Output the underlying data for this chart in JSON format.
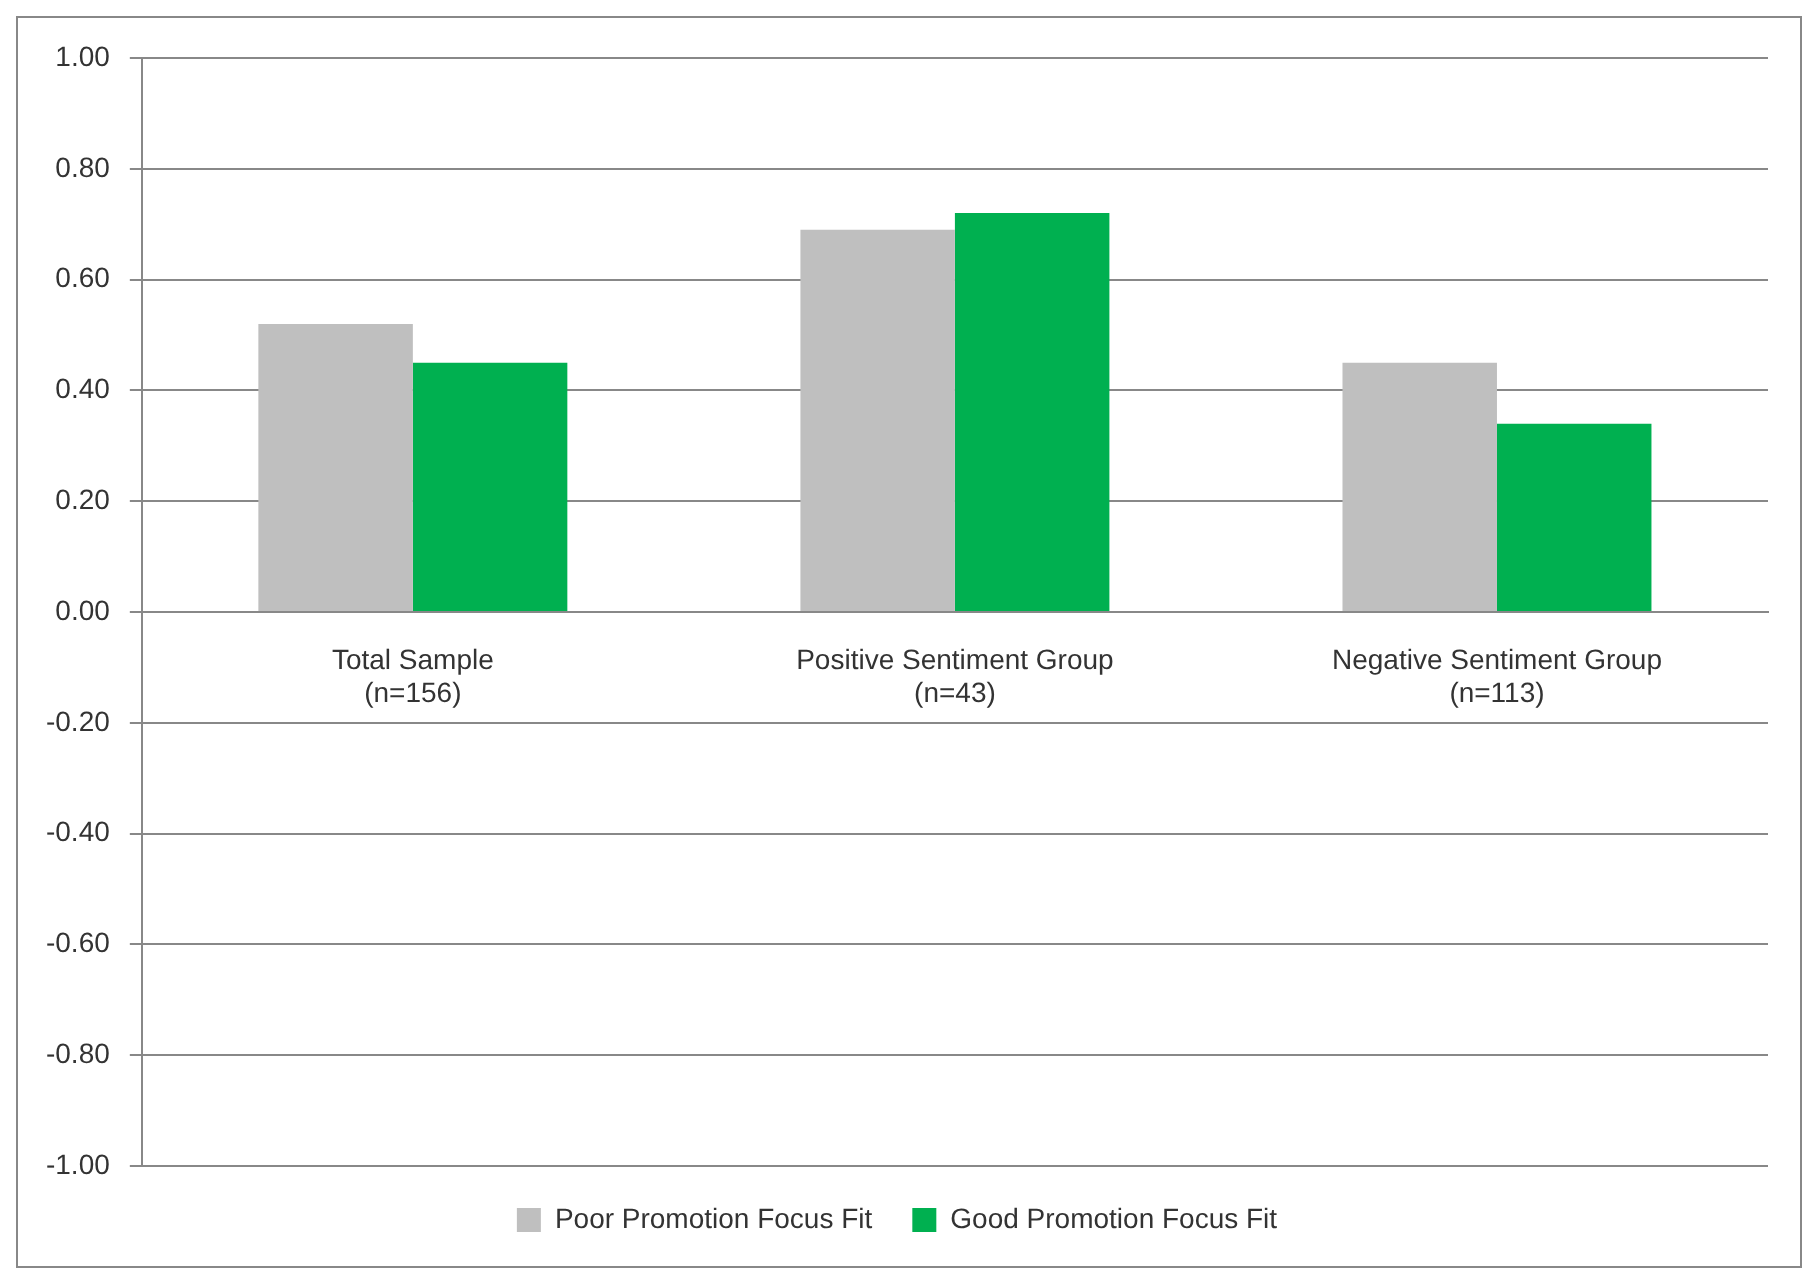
{
  "chart_data": {
    "type": "bar",
    "categories": [
      "Total Sample\n(n=156)",
      "Positive Sentiment Group\n(n=43)",
      "Negative Sentiment Group\n(n=113)"
    ],
    "series": [
      {
        "name": "Poor Promotion Focus Fit",
        "color": "#bfbfbf",
        "values": [
          0.52,
          0.69,
          0.45
        ]
      },
      {
        "name": "Good Promotion Focus Fit",
        "color": "#00b050",
        "values": [
          0.45,
          0.72,
          0.34
        ]
      }
    ],
    "ylim": [
      -1,
      1
    ],
    "yticks": [
      {
        "value": -1,
        "label": "-1.00"
      },
      {
        "value": -0.8,
        "label": "-0.80"
      },
      {
        "value": -0.6,
        "label": "-0.60"
      },
      {
        "value": -0.4,
        "label": "-0.40"
      },
      {
        "value": -0.2,
        "label": "-0.20"
      },
      {
        "value": 0,
        "label": "0.00"
      },
      {
        "value": 0.2,
        "label": "0.20"
      },
      {
        "value": 0.4,
        "label": "0.40"
      },
      {
        "value": 0.6,
        "label": "0.60"
      },
      {
        "value": 0.8,
        "label": "0.80"
      },
      {
        "value": 1,
        "label": "1.00"
      }
    ],
    "grid": "y",
    "legend": "bottom"
  }
}
